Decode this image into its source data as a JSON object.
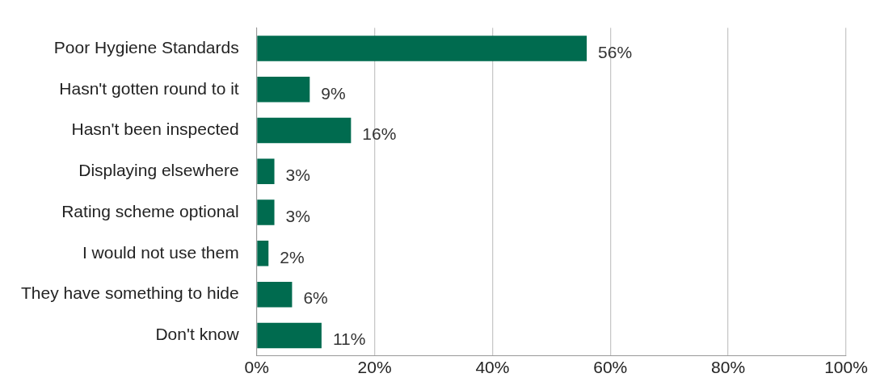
{
  "chart_data": {
    "type": "bar",
    "orientation": "horizontal",
    "categories": [
      "Poor Hygiene Standards",
      "Hasn't gotten round to it",
      "Hasn't been inspected",
      "Displaying elsewhere",
      "Rating scheme optional",
      "I would not use them",
      "They have something to hide",
      "Don't know"
    ],
    "values": [
      56,
      9,
      16,
      3,
      3,
      2,
      6,
      11
    ],
    "value_labels": [
      "56%",
      "9%",
      "16%",
      "3%",
      "3%",
      "2%",
      "6%",
      "11%"
    ],
    "color": "#006b4f",
    "xlim": [
      0,
      100
    ],
    "xticks": [
      {
        "value": 0,
        "label": "0%"
      },
      {
        "value": 20,
        "label": "20%"
      },
      {
        "value": 40,
        "label": "40%"
      },
      {
        "value": 60,
        "label": "60%"
      },
      {
        "value": 80,
        "label": "80%"
      },
      {
        "value": 100,
        "label": "100%"
      }
    ],
    "grid": "x"
  }
}
